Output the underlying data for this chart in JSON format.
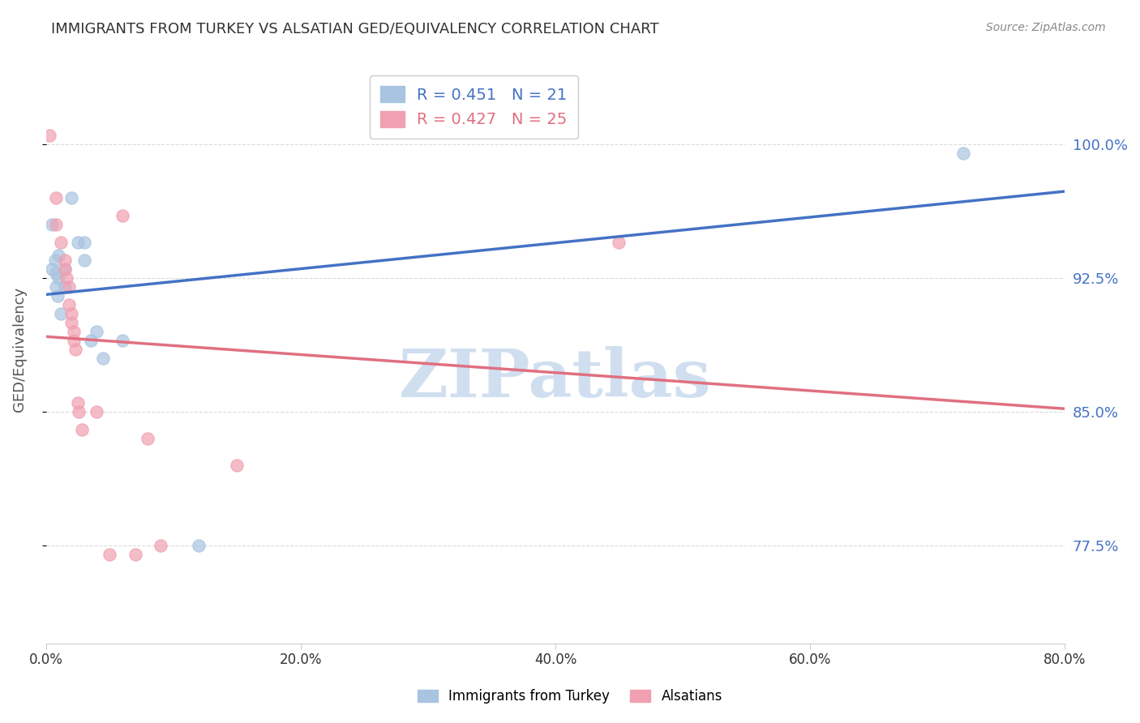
{
  "title": "IMMIGRANTS FROM TURKEY VS ALSATIAN GED/EQUIVALENCY CORRELATION CHART",
  "source": "Source: ZipAtlas.com",
  "xlabel": "",
  "ylabel": "GED/Equivalency",
  "legend_blue_r": "0.451",
  "legend_blue_n": "21",
  "legend_pink_r": "0.427",
  "legend_pink_n": "25",
  "legend_blue_label": "Immigrants from Turkey",
  "legend_pink_label": "Alsatians",
  "x_ticks": [
    "0.0%",
    "20.0%",
    "40.0%",
    "60.0%",
    "80.0%"
  ],
  "x_tick_vals": [
    0.0,
    0.2,
    0.4,
    0.6,
    0.8
  ],
  "y_ticks_right": [
    "100.0%",
    "92.5%",
    "85.0%",
    "77.5%"
  ],
  "y_tick_vals": [
    1.0,
    0.925,
    0.85,
    0.775
  ],
  "xlim": [
    0.0,
    0.8
  ],
  "ylim": [
    0.72,
    1.05
  ],
  "blue_points": [
    [
      0.005,
      0.955
    ],
    [
      0.005,
      0.93
    ],
    [
      0.007,
      0.935
    ],
    [
      0.008,
      0.928
    ],
    [
      0.008,
      0.92
    ],
    [
      0.009,
      0.915
    ],
    [
      0.01,
      0.938
    ],
    [
      0.01,
      0.925
    ],
    [
      0.012,
      0.905
    ],
    [
      0.015,
      0.93
    ],
    [
      0.015,
      0.92
    ],
    [
      0.02,
      0.97
    ],
    [
      0.025,
      0.945
    ],
    [
      0.03,
      0.945
    ],
    [
      0.03,
      0.935
    ],
    [
      0.035,
      0.89
    ],
    [
      0.04,
      0.895
    ],
    [
      0.045,
      0.88
    ],
    [
      0.06,
      0.89
    ],
    [
      0.12,
      0.775
    ],
    [
      0.72,
      0.995
    ]
  ],
  "pink_points": [
    [
      0.003,
      1.005
    ],
    [
      0.008,
      0.97
    ],
    [
      0.008,
      0.955
    ],
    [
      0.012,
      0.945
    ],
    [
      0.015,
      0.935
    ],
    [
      0.015,
      0.93
    ],
    [
      0.016,
      0.925
    ],
    [
      0.018,
      0.92
    ],
    [
      0.018,
      0.91
    ],
    [
      0.02,
      0.905
    ],
    [
      0.02,
      0.9
    ],
    [
      0.022,
      0.895
    ],
    [
      0.022,
      0.89
    ],
    [
      0.023,
      0.885
    ],
    [
      0.025,
      0.855
    ],
    [
      0.026,
      0.85
    ],
    [
      0.028,
      0.84
    ],
    [
      0.04,
      0.85
    ],
    [
      0.06,
      0.96
    ],
    [
      0.08,
      0.835
    ],
    [
      0.45,
      0.945
    ],
    [
      0.05,
      0.77
    ],
    [
      0.07,
      0.77
    ],
    [
      0.09,
      0.775
    ],
    [
      0.15,
      0.82
    ]
  ],
  "blue_color": "#a8c4e0",
  "pink_color": "#f0a0b0",
  "blue_line_color": "#4472c4",
  "pink_line_color": "#e07080",
  "title_color": "#333333",
  "axis_label_color": "#555555",
  "right_tick_color": "#4472c4",
  "bottom_tick_color": "#333333",
  "watermark": "ZIPatlas",
  "watermark_color": "#d0dff0",
  "grid_color": "#cccccc",
  "background_color": "#ffffff"
}
